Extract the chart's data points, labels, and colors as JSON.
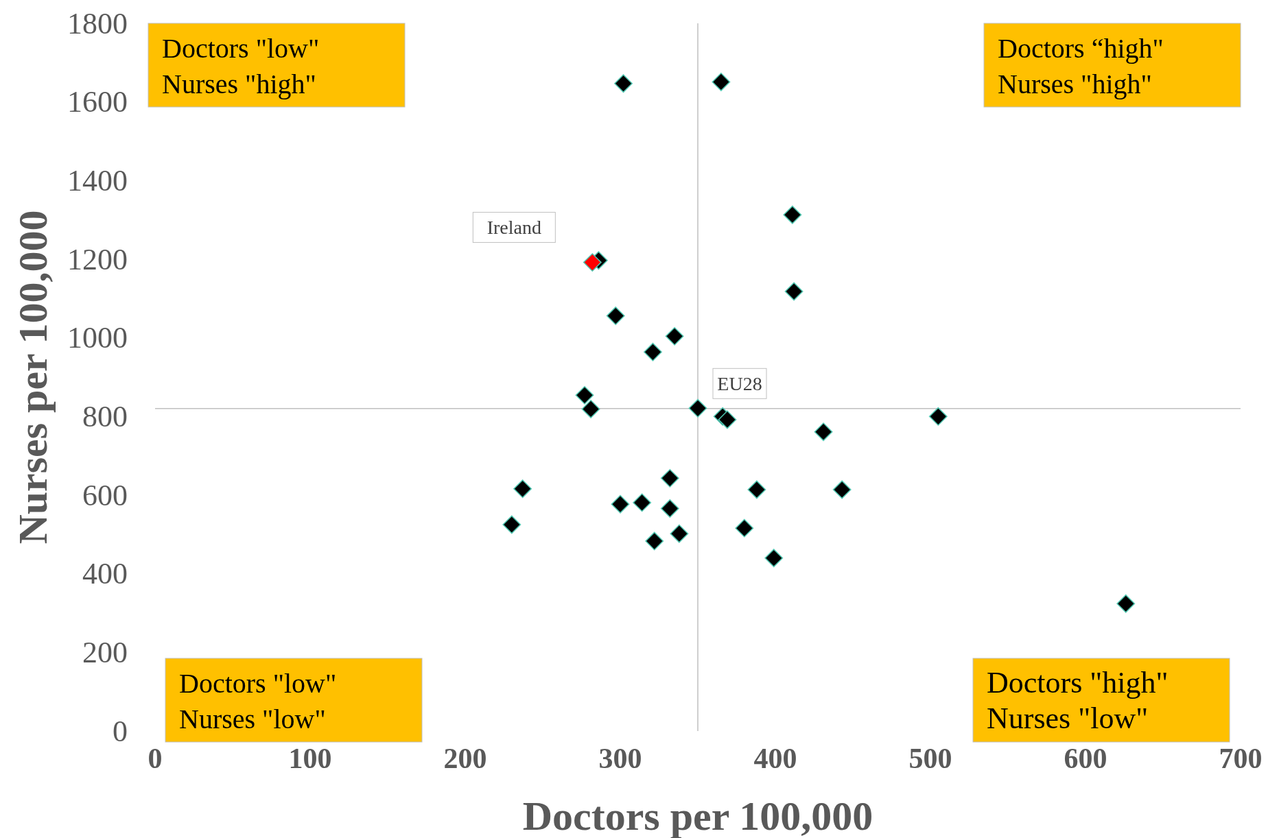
{
  "chart_data": {
    "type": "scatter",
    "xlabel": "Doctors per 100,000",
    "ylabel": "Nurses per 100,000",
    "xlim": [
      0,
      700
    ],
    "xticks": [
      0,
      100,
      200,
      300,
      400,
      500,
      600,
      700
    ],
    "ylim": [
      0,
      1800
    ],
    "yticks": [
      0,
      200,
      400,
      600,
      800,
      1000,
      1200,
      1400,
      1600,
      1800
    ],
    "grid": false,
    "marker": "diamond",
    "series": [
      {
        "x": [
          302,
          365,
          411,
          286,
          282,
          412,
          297,
          335,
          321,
          277,
          281,
          350,
          366,
          369,
          431,
          505,
          237,
          230,
          332,
          300,
          314,
          332,
          322,
          338,
          388,
          443,
          380,
          399,
          626
        ],
        "values": [
          1647,
          1651,
          1313,
          1197,
          1192,
          1118,
          1056,
          1004,
          964,
          854,
          819,
          821,
          800,
          792,
          761,
          800,
          616,
          525,
          643,
          577,
          581,
          566,
          483,
          502,
          614,
          614,
          516,
          440,
          324
        ],
        "colors": [
          "#000000",
          "#000000",
          "#000000",
          "#000000",
          "#ff0000",
          "#000000",
          "#000000",
          "#000000",
          "#000000",
          "#000000",
          "#000000",
          "#000000",
          "#000000",
          "#000000",
          "#000000",
          "#000000",
          "#000000",
          "#000000",
          "#000000",
          "#000000",
          "#000000",
          "#000000",
          "#000000",
          "#000000",
          "#000000",
          "#000000",
          "#000000",
          "#000000",
          "#000000"
        ]
      }
    ],
    "ref_lines": [
      {
        "axis": "x",
        "value": 350,
        "color": "#bfbfbf"
      },
      {
        "axis": "y",
        "value": 820,
        "color": "#bfbfbf"
      }
    ],
    "annotations": [
      {
        "text": "Ireland",
        "x": 282,
        "y": 1192
      },
      {
        "text": "EU28",
        "x": 350,
        "y": 821
      },
      "Doctors \"low\"\nNurses \"high\"",
      "Doctors “high\"\nNurses \"high\"",
      "Doctors \"low\"\nNurses \"low\"",
      "Doctors \"high\"\nNurses \"low\""
    ]
  }
}
